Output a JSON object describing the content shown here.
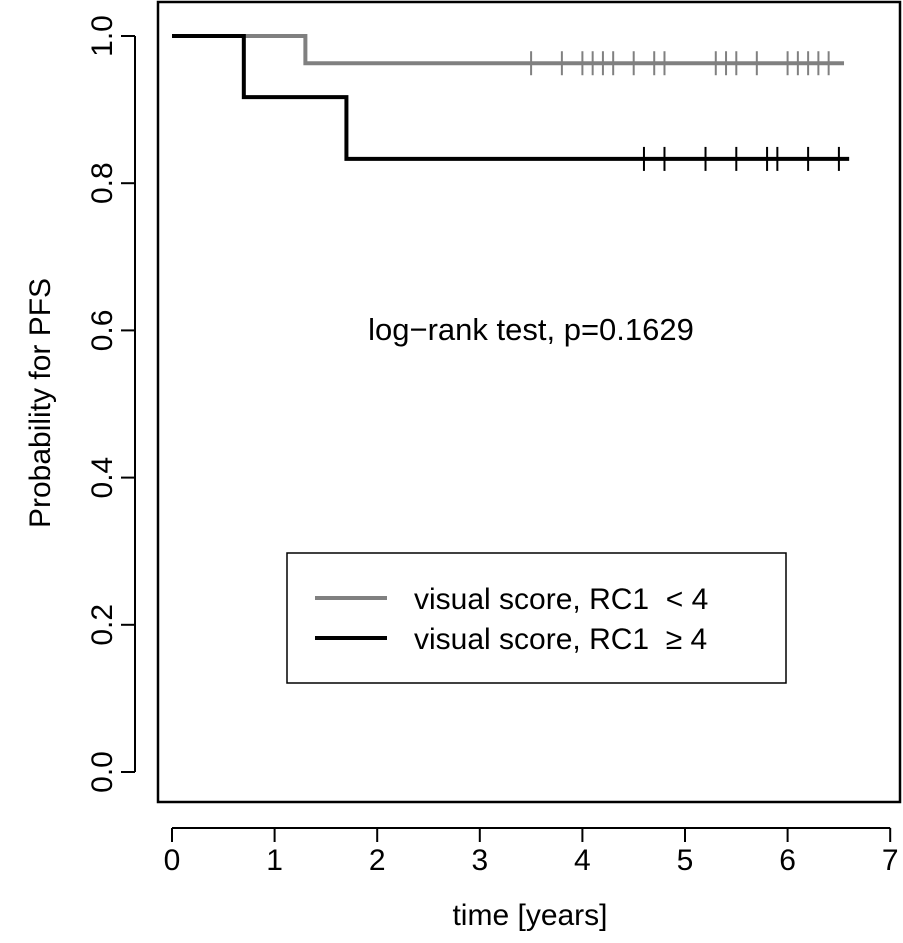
{
  "chart_data": {
    "type": "line",
    "xlabel": "time [years]",
    "ylabel": "Probability for PFS",
    "xlim": [
      0,
      7
    ],
    "ylim": [
      0,
      1
    ],
    "x_ticks": [
      "0",
      "1",
      "2",
      "3",
      "4",
      "5",
      "6",
      "7"
    ],
    "y_ticks": [
      "0.0",
      "0.2",
      "0.4",
      "0.6",
      "0.8",
      "1.0"
    ],
    "grid": false,
    "annotation": "log−rank test, p=0.1629",
    "legend": {
      "position": "lower-right",
      "entries": [
        "visual score, RC1  < 4",
        "visual score, RC1  ≥ 4"
      ]
    },
    "series": [
      {
        "name": "visual score, RC1  < 4",
        "color": "#808080",
        "x": [
          0,
          1.3,
          6.55
        ],
        "y": [
          1.0,
          0.963,
          0.963
        ],
        "censor_x": [
          3.5,
          3.8,
          4.0,
          4.1,
          4.2,
          4.3,
          4.5,
          4.7,
          4.8,
          5.3,
          5.4,
          5.5,
          5.7,
          6.0,
          6.1,
          6.2,
          6.3,
          6.4
        ]
      },
      {
        "name": "visual score, RC1  ≥ 4",
        "color": "#000000",
        "x": [
          0,
          0.7,
          1.7,
          6.6
        ],
        "y": [
          1.0,
          0.917,
          0.833,
          0.833
        ],
        "censor_x": [
          4.6,
          4.8,
          5.2,
          5.5,
          5.8,
          5.9,
          6.2,
          6.5
        ]
      }
    ]
  }
}
